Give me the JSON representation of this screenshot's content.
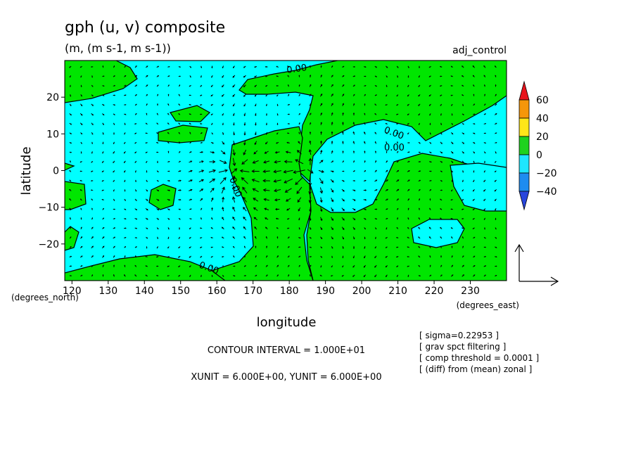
{
  "chart_data": {
    "type": "contour",
    "title": "gph (u, v) composite",
    "subtitle": "(m, (m s-1, m s-1))",
    "run_label": "adj_control",
    "xlabel": "longitude",
    "ylabel": "latitude",
    "x_unit_label": "(degrees_east)",
    "y_unit_label": "(degrees_north)",
    "xlim": [
      118,
      240
    ],
    "ylim": [
      -30,
      30
    ],
    "x_ticks": [
      120,
      130,
      140,
      150,
      160,
      170,
      180,
      190,
      200,
      210,
      220,
      230
    ],
    "y_ticks": [
      20,
      10,
      0,
      -10,
      -20
    ],
    "contour_labels": [
      "0.00",
      "0.00",
      "0.00",
      "0.00",
      "0.00"
    ],
    "colorbar": {
      "ticks": [
        "60",
        "40",
        "20",
        "0",
        "−20",
        "−40"
      ],
      "bands": [
        {
          "range": [
            60,
            80
          ],
          "color": "#e8141c"
        },
        {
          "range": [
            40,
            60
          ],
          "color": "#f5960a"
        },
        {
          "range": [
            20,
            40
          ],
          "color": "#ffe619"
        },
        {
          "range": [
            0,
            20
          ],
          "color": "#1ed21e"
        },
        {
          "range": [
            -20,
            0
          ],
          "color": "#1ee6ff"
        },
        {
          "range": [
            -40,
            -20
          ],
          "color": "#1e8cf0"
        },
        {
          "range": [
            -60,
            -40
          ],
          "color": "#2846dc"
        }
      ]
    },
    "positive_color": "#00e600",
    "negative_color": "#00ffff",
    "vector_centers": [
      {
        "lon": 165,
        "lat": 0,
        "type": "convergence"
      },
      {
        "lon": 185,
        "lat": 0,
        "type": "divergence"
      }
    ],
    "notes": {
      "contour_interval": "CONTOUR INTERVAL = 1.000E+01",
      "units": "XUNIT = 6.000E+00, YUNIT = 6.000E+00",
      "sigma": "[ sigma=0.22953 ]",
      "filtering": "[ grav spct filtering ]",
      "threshold": "[ comp threshold = 0.0001 ]",
      "diff": "[ (diff) from (mean) zonal ]"
    }
  }
}
